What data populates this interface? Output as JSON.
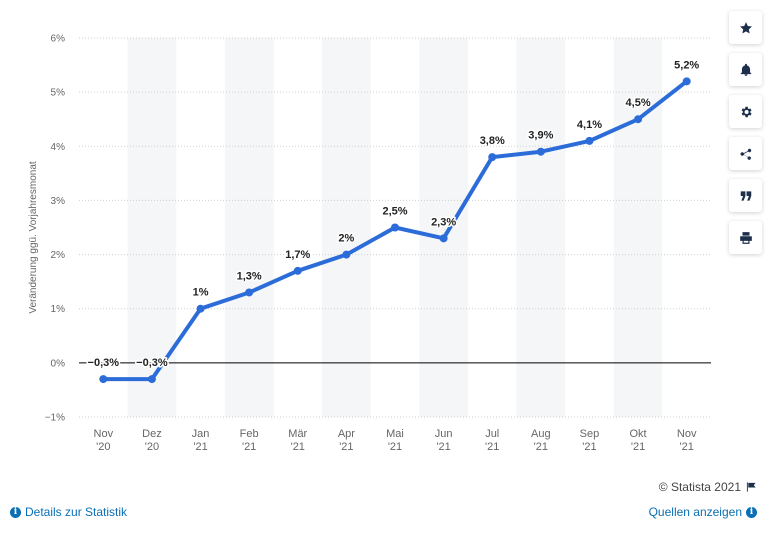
{
  "chart_data": {
    "type": "line",
    "ylabel": "Veränderung ggü. Vorjahresmonat",
    "ylim": [
      -1,
      6
    ],
    "yticks": [
      {
        "value": -1,
        "label": "−1%"
      },
      {
        "value": 0,
        "label": "0%"
      },
      {
        "value": 1,
        "label": "1%"
      },
      {
        "value": 2,
        "label": "2%"
      },
      {
        "value": 3,
        "label": "3%"
      },
      {
        "value": 4,
        "label": "4%"
      },
      {
        "value": 5,
        "label": "5%"
      },
      {
        "value": 6,
        "label": "6%"
      }
    ],
    "grid": true,
    "categories": [
      {
        "month": "Nov",
        "year": "'20"
      },
      {
        "month": "Dez",
        "year": "'20"
      },
      {
        "month": "Jan",
        "year": "'21"
      },
      {
        "month": "Feb",
        "year": "'21"
      },
      {
        "month": "Mär",
        "year": "'21"
      },
      {
        "month": "Apr",
        "year": "'21"
      },
      {
        "month": "Mai",
        "year": "'21"
      },
      {
        "month": "Jun",
        "year": "'21"
      },
      {
        "month": "Jul",
        "year": "'21"
      },
      {
        "month": "Aug",
        "year": "'21"
      },
      {
        "month": "Sep",
        "year": "'21"
      },
      {
        "month": "Okt",
        "year": "'21"
      },
      {
        "month": "Nov",
        "year": "'21"
      }
    ],
    "series": [
      {
        "values": [
          -0.3,
          -0.3,
          1,
          1.3,
          1.7,
          2,
          2.5,
          2.3,
          3.8,
          3.9,
          4.1,
          4.5,
          5.2
        ],
        "labels": [
          "−0,3%",
          "−0,3%",
          "1%",
          "1,3%",
          "1,7%",
          "2%",
          "2,5%",
          "2,3%",
          "3,8%",
          "3,9%",
          "4,1%",
          "4,5%",
          "5,2%"
        ],
        "color": "#2b6cd8"
      }
    ],
    "band_color": "#f5f6f7"
  },
  "toolbar": {
    "icons": [
      "star-icon",
      "bell-icon",
      "gear-icon",
      "share-icon",
      "quote-icon",
      "print-icon"
    ]
  },
  "footer": {
    "credit": "© Statista 2021",
    "details_link": "Details zur Statistik",
    "sources_link": "Quellen anzeigen"
  }
}
